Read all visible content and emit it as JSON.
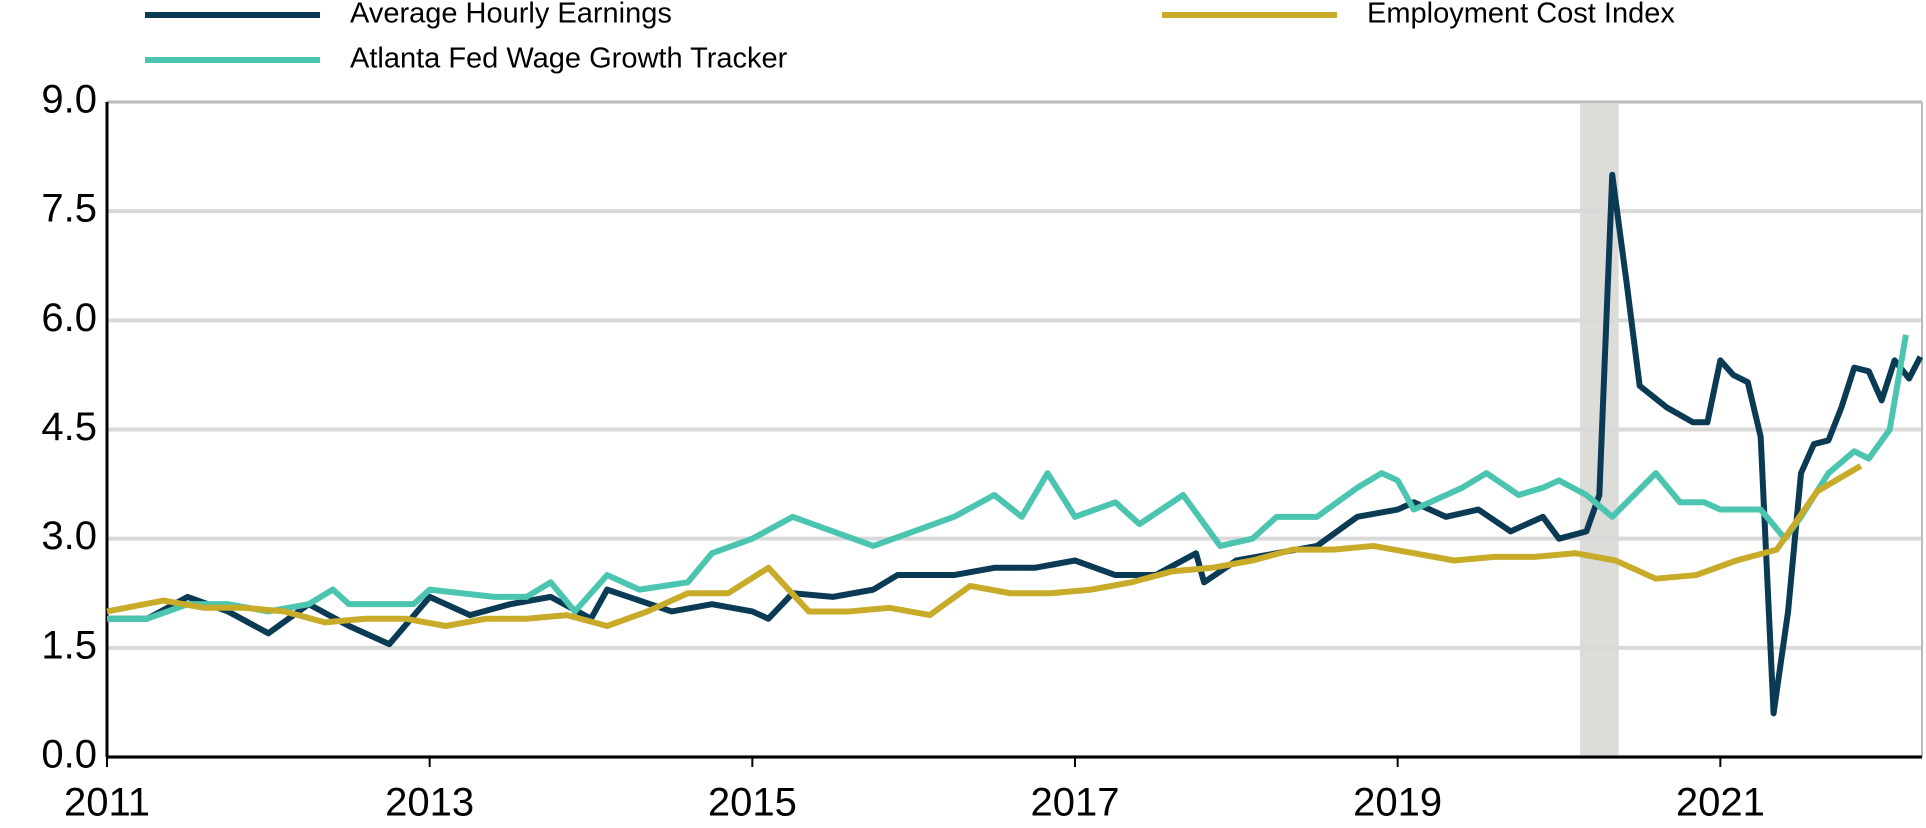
{
  "chart_data": {
    "type": "line",
    "xlim": [
      2011,
      2022.25
    ],
    "xticks": [
      2011,
      2013,
      2015,
      2017,
      2019,
      2021
    ],
    "ylim": [
      0,
      9
    ],
    "yticks": [
      {
        "value": 0,
        "label": "0.0"
      },
      {
        "value": 1.5,
        "label": "1.5"
      },
      {
        "value": 3,
        "label": "3.0"
      },
      {
        "value": 4.5,
        "label": "4.5"
      },
      {
        "value": 6,
        "label": "6.0"
      },
      {
        "value": 7.5,
        "label": "7.5"
      },
      {
        "value": 9,
        "label": "9.0"
      }
    ],
    "grid": true,
    "shade": [
      2020.13,
      2020.37
    ],
    "shade_color": "#dcdcd8",
    "series": [
      {
        "name": "Average Hourly Earnings",
        "color": "#0b3a55",
        "x": [
          2011.0,
          2011.25,
          2011.5,
          2011.75,
          2012.0,
          2012.25,
          2012.5,
          2012.75,
          2013.0,
          2013.25,
          2013.5,
          2013.75,
          2014.0,
          2014.1,
          2014.5,
          2014.75,
          2015.0,
          2015.1,
          2015.25,
          2015.5,
          2015.75,
          2015.9,
          2016.25,
          2016.5,
          2016.75,
          2017.0,
          2017.25,
          2017.5,
          2017.75,
          2017.8,
          2018.0,
          2018.25,
          2018.5,
          2018.75,
          2019.0,
          2019.1,
          2019.3,
          2019.5,
          2019.7,
          2019.9,
          2020.0,
          2020.17,
          2020.25,
          2020.33,
          2020.42,
          2020.5,
          2020.67,
          2020.83,
          2020.92,
          2021.0,
          2021.08,
          2021.17,
          2021.25,
          2021.33,
          2021.42,
          2021.5,
          2021.58,
          2021.67,
          2021.75,
          2021.83,
          2021.92,
          2022.0,
          2022.08,
          2022.17,
          2022.24
        ],
        "values": [
          1.9,
          1.9,
          2.2,
          2.0,
          1.7,
          2.1,
          1.8,
          1.55,
          2.2,
          1.95,
          2.1,
          2.2,
          1.9,
          2.3,
          2.0,
          2.1,
          2.0,
          1.9,
          2.25,
          2.2,
          2.3,
          2.5,
          2.5,
          2.6,
          2.6,
          2.7,
          2.5,
          2.5,
          2.8,
          2.4,
          2.7,
          2.8,
          2.9,
          3.3,
          3.4,
          3.5,
          3.3,
          3.4,
          3.1,
          3.3,
          3.0,
          3.1,
          3.6,
          8.0,
          6.5,
          5.1,
          4.8,
          4.6,
          4.6,
          5.45,
          5.25,
          5.15,
          4.4,
          0.6,
          2.0,
          3.9,
          4.3,
          4.35,
          4.8,
          5.35,
          5.3,
          4.9,
          5.45,
          5.2,
          5.5
        ]
      },
      {
        "name": "Atlanta Fed Wage Growth Tracker",
        "color": "#4cc5b0",
        "x": [
          2011.0,
          2011.25,
          2011.5,
          2011.75,
          2012.0,
          2012.25,
          2012.4,
          2012.5,
          2012.9,
          2013.0,
          2013.4,
          2013.6,
          2013.75,
          2013.9,
          2014.1,
          2014.3,
          2014.6,
          2014.75,
          2015.0,
          2015.25,
          2015.5,
          2015.75,
          2016.0,
          2016.25,
          2016.5,
          2016.67,
          2016.83,
          2017.0,
          2017.25,
          2017.4,
          2017.67,
          2017.9,
          2018.1,
          2018.25,
          2018.5,
          2018.75,
          2018.9,
          2019.0,
          2019.1,
          2019.4,
          2019.55,
          2019.75,
          2019.9,
          2020.0,
          2020.17,
          2020.33,
          2020.6,
          2020.75,
          2020.9,
          2021.0,
          2021.25,
          2021.4,
          2021.5,
          2021.67,
          2021.83,
          2021.92,
          2022.05,
          2022.15
        ],
        "values": [
          1.9,
          1.9,
          2.1,
          2.1,
          2.0,
          2.1,
          2.3,
          2.1,
          2.1,
          2.3,
          2.2,
          2.2,
          2.4,
          2.0,
          2.5,
          2.3,
          2.4,
          2.8,
          3.0,
          3.3,
          3.1,
          2.9,
          3.1,
          3.3,
          3.6,
          3.3,
          3.9,
          3.3,
          3.5,
          3.2,
          3.6,
          2.9,
          3.0,
          3.3,
          3.3,
          3.7,
          3.9,
          3.8,
          3.4,
          3.7,
          3.9,
          3.6,
          3.7,
          3.8,
          3.6,
          3.3,
          3.9,
          3.5,
          3.5,
          3.4,
          3.4,
          3.0,
          3.3,
          3.9,
          4.2,
          4.1,
          4.5,
          5.8
        ]
      },
      {
        "name": "Employment Cost Index",
        "color": "#c9ab2a",
        "x": [
          2011.0,
          2011.35,
          2011.6,
          2011.85,
          2012.1,
          2012.35,
          2012.6,
          2012.85,
          2013.1,
          2013.35,
          2013.6,
          2013.85,
          2014.1,
          2014.35,
          2014.6,
          2014.85,
          2015.1,
          2015.35,
          2015.6,
          2015.85,
          2016.1,
          2016.35,
          2016.6,
          2016.85,
          2017.1,
          2017.35,
          2017.6,
          2017.85,
          2018.1,
          2018.35,
          2018.6,
          2018.85,
          2019.1,
          2019.35,
          2019.6,
          2019.85,
          2020.1,
          2020.35,
          2020.6,
          2020.85,
          2021.1,
          2021.35,
          2021.6,
          2021.87
        ],
        "values": [
          2.0,
          2.15,
          2.05,
          2.05,
          2.0,
          1.85,
          1.9,
          1.9,
          1.8,
          1.9,
          1.9,
          1.95,
          1.8,
          2.0,
          2.25,
          2.25,
          2.6,
          2.0,
          2.0,
          2.05,
          1.95,
          2.35,
          2.25,
          2.25,
          2.3,
          2.4,
          2.55,
          2.6,
          2.7,
          2.85,
          2.85,
          2.9,
          2.8,
          2.7,
          2.75,
          2.75,
          2.8,
          2.7,
          2.45,
          2.5,
          2.7,
          2.85,
          3.65,
          4.0
        ]
      }
    ]
  }
}
